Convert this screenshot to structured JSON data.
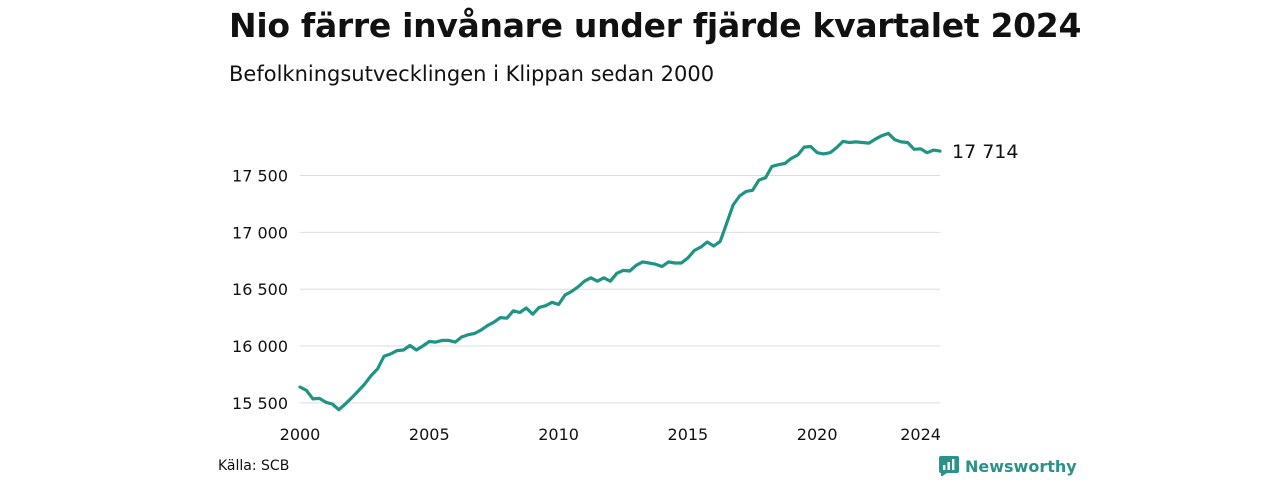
{
  "header": {
    "title": "Nio färre invånare under fjärde kvartalet 2024",
    "subtitle": "Befolkningsutvecklingen i Klippan sedan 2000"
  },
  "footer": {
    "source": "Källa: SCB",
    "brand": "Newsworthy"
  },
  "colors": {
    "line": "#1f9484",
    "grid": "#dddddd",
    "brand": "#2c9189"
  },
  "chart_data": {
    "type": "line",
    "title": "Nio färre invånare under fjärde kvartalet 2024",
    "subtitle": "Befolkningsutvecklingen i Klippan sedan 2000",
    "xlim": [
      2000,
      2024.75
    ],
    "ylim": [
      15420,
      17900
    ],
    "xticks": [
      2000,
      2005,
      2010,
      2015,
      2020,
      2024
    ],
    "xtick_labels": [
      "2000",
      "2005",
      "2010",
      "2015",
      "2020",
      "2024"
    ],
    "yticks": [
      15500,
      16000,
      16500,
      17000,
      17500
    ],
    "ytick_labels": [
      "15 500",
      "16 000",
      "16 500",
      "17 000",
      "17 500"
    ],
    "grid": "horizontal",
    "end_label": "17 714",
    "x": [
      2000.0,
      2000.25,
      2000.5,
      2000.75,
      2001.0,
      2001.25,
      2001.5,
      2001.75,
      2002.0,
      2002.25,
      2002.5,
      2002.75,
      2003.0,
      2003.25,
      2003.5,
      2003.75,
      2004.0,
      2004.25,
      2004.5,
      2004.75,
      2005.0,
      2005.25,
      2005.5,
      2005.75,
      2006.0,
      2006.25,
      2006.5,
      2006.75,
      2007.0,
      2007.25,
      2007.5,
      2007.75,
      2008.0,
      2008.25,
      2008.5,
      2008.75,
      2009.0,
      2009.25,
      2009.5,
      2009.75,
      2010.0,
      2010.25,
      2010.5,
      2010.75,
      2011.0,
      2011.25,
      2011.5,
      2011.75,
      2012.0,
      2012.25,
      2012.5,
      2012.75,
      2013.0,
      2013.25,
      2013.5,
      2013.75,
      2014.0,
      2014.25,
      2014.5,
      2014.75,
      2015.0,
      2015.25,
      2015.5,
      2015.75,
      2016.0,
      2016.25,
      2016.5,
      2016.75,
      2017.0,
      2017.25,
      2017.5,
      2017.75,
      2018.0,
      2018.25,
      2018.5,
      2018.75,
      2019.0,
      2019.25,
      2019.5,
      2019.75,
      2020.0,
      2020.25,
      2020.5,
      2020.75,
      2021.0,
      2021.25,
      2021.5,
      2021.75,
      2022.0,
      2022.25,
      2022.5,
      2022.75,
      2023.0,
      2023.25,
      2023.5,
      2023.75,
      2024.0,
      2024.25,
      2024.5,
      2024.75
    ],
    "series": [
      {
        "values": [
          15640,
          15610,
          15535,
          15540,
          15505,
          15490,
          15440,
          15490,
          15545,
          15605,
          15665,
          15740,
          15800,
          15910,
          15930,
          15960,
          15965,
          16005,
          15965,
          16000,
          16040,
          16035,
          16050,
          16050,
          16035,
          16080,
          16100,
          16110,
          16140,
          16180,
          16210,
          16250,
          16245,
          16310,
          16295,
          16335,
          16280,
          16340,
          16355,
          16385,
          16365,
          16450,
          16480,
          16520,
          16570,
          16600,
          16570,
          16600,
          16570,
          16640,
          16665,
          16660,
          16710,
          16740,
          16730,
          16720,
          16700,
          16740,
          16730,
          16730,
          16775,
          16840,
          16870,
          16915,
          16880,
          16920,
          17080,
          17240,
          17320,
          17360,
          17370,
          17460,
          17480,
          17580,
          17595,
          17605,
          17650,
          17680,
          17750,
          17755,
          17700,
          17690,
          17700,
          17745,
          17800,
          17790,
          17795,
          17790,
          17785,
          17820,
          17850,
          17870,
          17815,
          17795,
          17790,
          17730,
          17735,
          17700,
          17723,
          17714
        ]
      }
    ]
  }
}
